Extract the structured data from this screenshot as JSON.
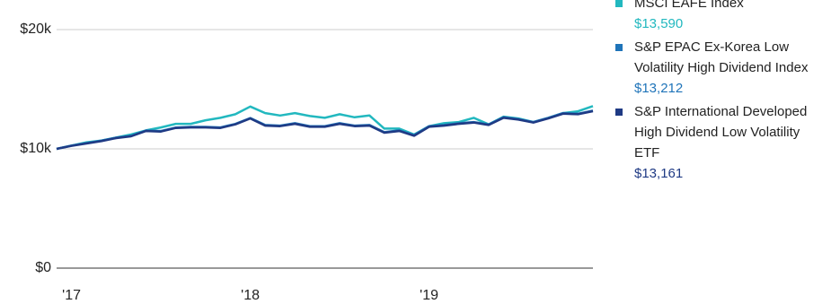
{
  "chart_data": {
    "type": "line",
    "categories": [
      null,
      "'17",
      null,
      null,
      null,
      null,
      null,
      null,
      null,
      null,
      null,
      null,
      null,
      "'18",
      null,
      null,
      null,
      null,
      null,
      null,
      null,
      null,
      null,
      null,
      null,
      "'19",
      null,
      null,
      null,
      null,
      null,
      null,
      null,
      null,
      null,
      null,
      null
    ],
    "series": [
      {
        "name": "MSCI EAFE Index",
        "color": "#22b8bf",
        "values": [
          10000,
          10280,
          10550,
          10700,
          10950,
          11200,
          11550,
          11800,
          12100,
          12100,
          12400,
          12600,
          12900,
          13550,
          13000,
          12800,
          13000,
          12750,
          12600,
          12900,
          12650,
          12800,
          11700,
          11700,
          11200,
          11900,
          12150,
          12250,
          12600,
          12050,
          12700,
          12550,
          12250,
          12600,
          13000,
          13150,
          13590
        ],
        "value_labels": [
          null,
          null,
          null,
          null,
          null,
          null,
          null,
          null,
          null,
          null,
          null,
          null,
          null,
          null,
          null,
          null,
          null,
          null,
          null,
          null,
          null,
          null,
          null,
          null,
          null,
          null,
          null,
          null,
          null,
          null,
          null,
          null,
          null,
          null,
          null,
          null,
          "$13,590"
        ]
      },
      {
        "name": "S&P EPAC Ex-Korea Low Volatility High Dividend Index",
        "color": "#1f74b9",
        "values": [
          10000,
          10280,
          10480,
          10690,
          10940,
          11090,
          11540,
          11500,
          11790,
          11840,
          11840,
          11800,
          12090,
          12590,
          12000,
          11950,
          12150,
          11900,
          11900,
          12150,
          11950,
          12000,
          11400,
          11550,
          11150,
          11900,
          12000,
          12150,
          12250,
          12050,
          12650,
          12500,
          12250,
          12600,
          13000,
          12950,
          13212
        ],
        "value_labels": [
          null,
          null,
          null,
          null,
          null,
          null,
          null,
          null,
          null,
          null,
          null,
          null,
          null,
          null,
          null,
          null,
          null,
          null,
          null,
          null,
          null,
          null,
          null,
          null,
          null,
          null,
          null,
          null,
          null,
          null,
          null,
          null,
          null,
          null,
          null,
          null,
          "$13,212"
        ]
      },
      {
        "name": "S&P International Developed High Dividend Low Volatility ETF",
        "color": "#1f3a84",
        "values": [
          10000,
          10250,
          10450,
          10650,
          10900,
          11050,
          11500,
          11450,
          11750,
          11800,
          11800,
          11750,
          12050,
          12550,
          11950,
          11900,
          12100,
          11850,
          11850,
          12100,
          11900,
          11950,
          11350,
          11500,
          11100,
          11850,
          11950,
          12100,
          12200,
          12000,
          12600,
          12450,
          12200,
          12550,
          12950,
          12900,
          13161
        ],
        "value_labels": [
          null,
          null,
          null,
          null,
          null,
          null,
          null,
          null,
          null,
          null,
          null,
          null,
          null,
          null,
          null,
          null,
          null,
          null,
          null,
          null,
          null,
          null,
          null,
          null,
          null,
          null,
          null,
          null,
          null,
          null,
          null,
          null,
          null,
          null,
          null,
          null,
          "$13,161"
        ]
      }
    ],
    "ylim": [
      0,
      20000
    ],
    "yticks": [
      {
        "value": 0,
        "label": "$0"
      },
      {
        "value": 10000,
        "label": "$10k"
      },
      {
        "value": 20000,
        "label": "$20k"
      }
    ],
    "grid": true
  }
}
